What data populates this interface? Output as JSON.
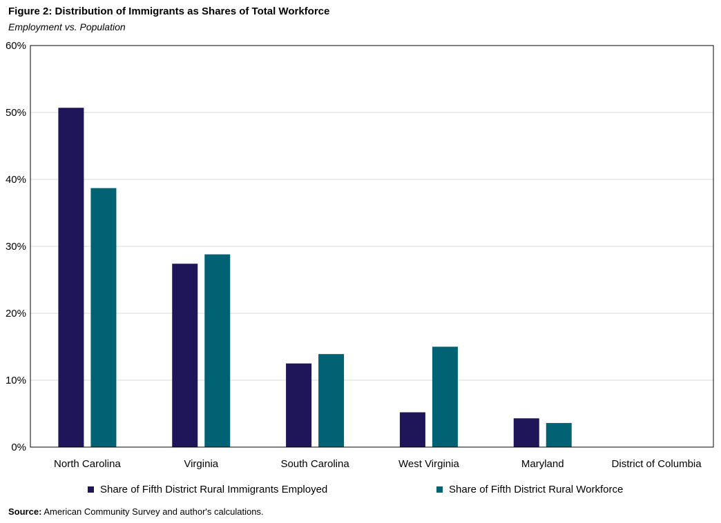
{
  "figure": {
    "title": "Figure 2: Distribution of Immigrants as Shares of Total Workforce",
    "subtitle": "Employment vs. Population"
  },
  "source": {
    "label": "Source:",
    "text": "American Community Survey and author's calculations."
  },
  "colors": {
    "series1": "#1f1659",
    "series2": "#006273",
    "grid": "#d9d9d9",
    "frame": "#000000"
  },
  "chart_data": {
    "type": "bar",
    "title": "Figure 2: Distribution of Immigrants as Shares of Total Workforce",
    "subtitle": "Employment vs. Population",
    "categories": [
      "North Carolina",
      "Virginia",
      "South Carolina",
      "West Virginia",
      "Maryland",
      "District of Columbia"
    ],
    "series": [
      {
        "name": "Share of Fifth District Rural Immigrants Employed",
        "values": [
          50.7,
          27.4,
          12.5,
          5.2,
          4.3,
          0
        ]
      },
      {
        "name": "Share of Fifth District Rural Workforce",
        "values": [
          38.7,
          28.8,
          13.9,
          15.0,
          3.6,
          0
        ]
      }
    ],
    "ylim": [
      0,
      60
    ],
    "yticks": [
      "0%",
      "10%",
      "20%",
      "30%",
      "40%",
      "50%",
      "60%"
    ],
    "xlabel": "",
    "ylabel": "",
    "grid": true,
    "legend": "bottom"
  }
}
